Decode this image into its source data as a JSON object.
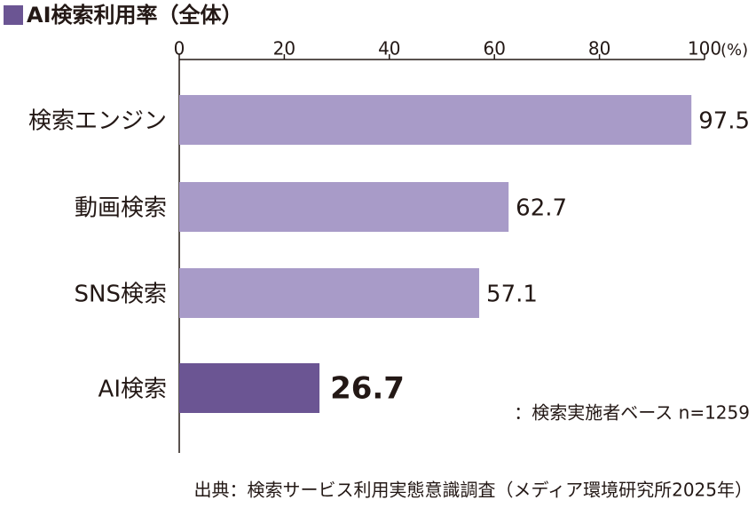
{
  "chart_data": {
    "type": "hbar",
    "title": "AI検索利用率（全体）",
    "categories": [
      "検索エンジン",
      "動画検索",
      "SNS検索",
      "AI検索"
    ],
    "values": [
      97.5,
      62.7,
      57.1,
      26.7
    ],
    "colors": [
      "#a89bc8",
      "#a89bc8",
      "#a89bc8",
      "#6b5593"
    ],
    "xlim": [
      0,
      100
    ],
    "xticks": [
      0,
      20,
      40,
      60,
      80,
      100
    ],
    "x_unit": "(%)",
    "grid": false,
    "note": "：検索実施者ベース n=1259",
    "source": "出典：検索サービス利用実態意識調査（メディア環境研究所2025年）"
  }
}
